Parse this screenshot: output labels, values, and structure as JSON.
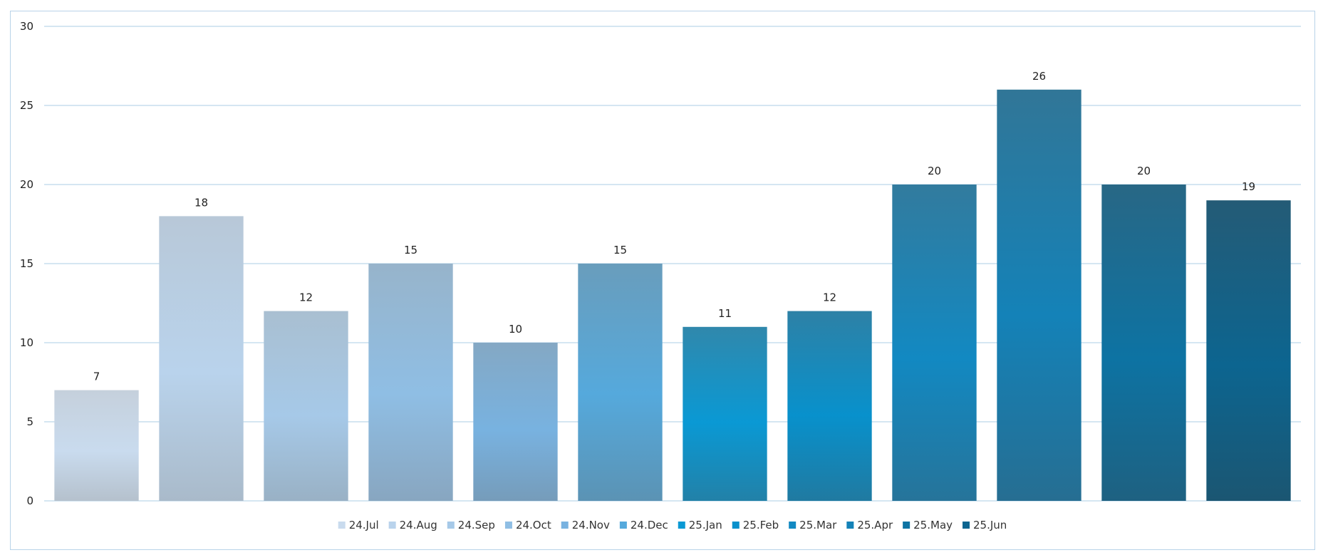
{
  "chart_data": {
    "type": "bar",
    "title": "",
    "xlabel": "",
    "ylabel": "",
    "ylim": [
      0,
      30
    ],
    "yticks": [
      0,
      5,
      10,
      15,
      20,
      25,
      30
    ],
    "grid": true,
    "legend_position": "bottom",
    "data_labels": true,
    "categories": [
      "24.Jul",
      "24.Aug",
      "24.Sep",
      "24.Oct",
      "24.Nov",
      "24.Dec",
      "25.Jan",
      "25.Feb",
      "25.Mar",
      "25.Apr",
      "25.May",
      "25.Jun"
    ],
    "values": [
      7,
      18,
      12,
      15,
      10,
      15,
      11,
      12,
      20,
      26,
      20,
      19
    ],
    "colors": [
      "#c9dbee",
      "#b9d3ec",
      "#a6c9e8",
      "#8fbee4",
      "#78b2e0",
      "#55a9dc",
      "#0a99d4",
      "#0891cc",
      "#1289c2",
      "#1482b8",
      "#0d73a3",
      "#0c6590"
    ]
  }
}
